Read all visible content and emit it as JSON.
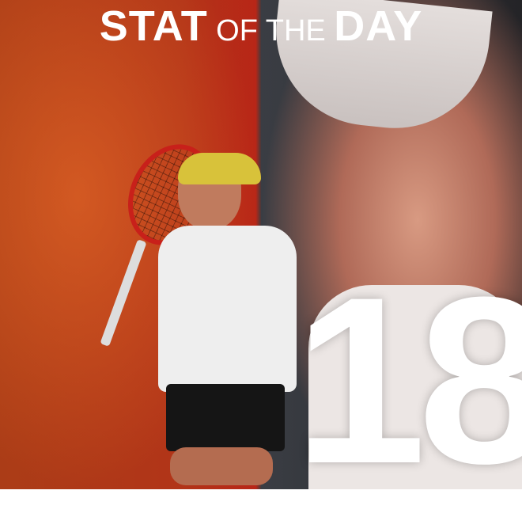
{
  "title": {
    "part1": "STAT",
    "part2": "OF THE",
    "part3": "DAY"
  },
  "stat_value": "18",
  "colors": {
    "left_bg": "#c03a1c",
    "right_bg": "#2c3238",
    "text": "#ffffff"
  }
}
